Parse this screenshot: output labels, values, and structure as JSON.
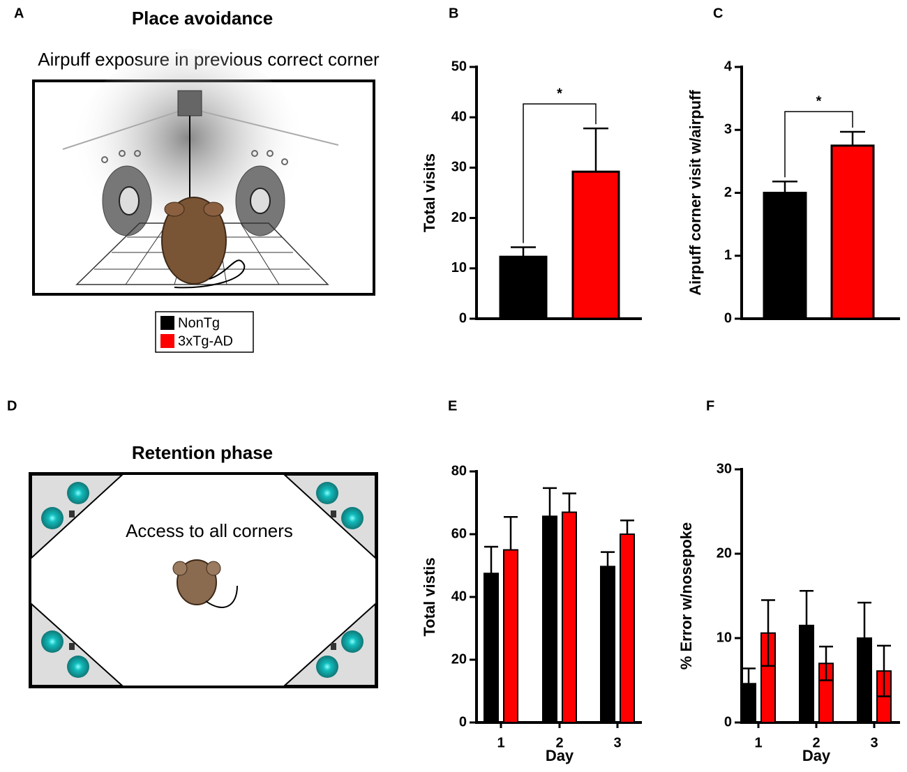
{
  "panel_labels": [
    "A",
    "B",
    "C",
    "D",
    "E",
    "F"
  ],
  "panel_a": {
    "title": "Place avoidance",
    "subtitle": "Airpuff exposure in previous correct corner"
  },
  "panel_d": {
    "title": "Retention phase",
    "annotation": "Access to all corners"
  },
  "legend": {
    "entries": [
      {
        "label": "NonTg",
        "color": "#000000"
      },
      {
        "label": "3xTg-AD",
        "color": "#ff0000"
      }
    ]
  },
  "chart_data": [
    {
      "type": "bar",
      "ylabel": "Total visits",
      "values": [
        12.3,
        29.2
      ],
      "errors": [
        1.9,
        8.6
      ],
      "colors": [
        "#000000",
        "#ff0000"
      ],
      "ylim": [
        0,
        50
      ],
      "yticks": [
        0,
        10,
        20,
        30,
        40,
        50
      ],
      "error_bars": "up",
      "annotation": "*"
    },
    {
      "type": "bar",
      "ylabel": "Airpuff corner visit w/airpuff",
      "values": [
        2.0,
        2.75
      ],
      "errors": [
        0.18,
        0.22
      ],
      "colors": [
        "#000000",
        "#ff0000"
      ],
      "ylim": [
        0,
        4
      ],
      "yticks": [
        0,
        1,
        2,
        3,
        4
      ],
      "error_bars": "up",
      "annotation": "*"
    },
    {
      "type": "grouped_bar",
      "ylabel": "Total vistis",
      "xlabel": "Day",
      "categories": [
        "1",
        "2",
        "3"
      ],
      "series": [
        {
          "color": "#000000",
          "values": [
            47.5,
            65.7,
            49.7
          ],
          "errors": [
            8.5,
            9.0,
            4.6
          ]
        },
        {
          "color": "#ff0000",
          "values": [
            55.0,
            67.0,
            60.0
          ],
          "errors": [
            10.5,
            6.0,
            4.4
          ]
        }
      ],
      "ylim": [
        0,
        80
      ],
      "yticks": [
        0,
        20,
        40,
        60,
        80
      ],
      "error_bars": "up"
    },
    {
      "type": "grouped_bar",
      "ylabel": "% Error w/nosepoke",
      "xlabel": "Day",
      "categories": [
        "1",
        "2",
        "3"
      ],
      "series": [
        {
          "color": "#000000",
          "values": [
            4.6,
            11.5,
            10.0
          ],
          "errors": [
            1.8,
            4.1,
            4.2
          ]
        },
        {
          "color": "#ff0000",
          "values": [
            10.6,
            7.0,
            6.1
          ],
          "errors": [
            3.9,
            2.0,
            3.0
          ]
        }
      ],
      "ylim": [
        0,
        30
      ],
      "yticks": [
        0,
        10,
        20,
        30
      ],
      "error_bars": "both"
    }
  ]
}
